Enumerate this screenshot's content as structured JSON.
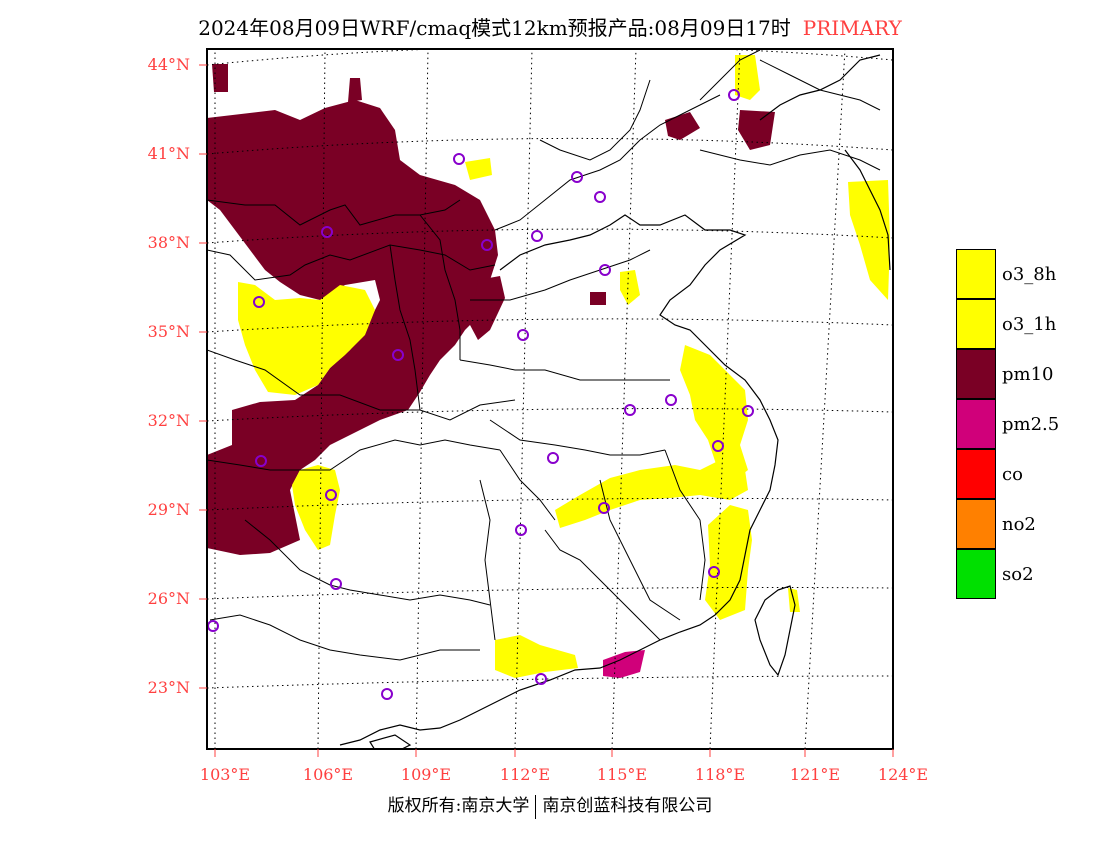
{
  "title": {
    "main": "2024年08月09日WRF/cmaq模式12km预报产品:08月09日17时",
    "type": "PRIMARY"
  },
  "map": {
    "lat_labels": [
      "44°N",
      "41°N",
      "38°N",
      "35°N",
      "32°N",
      "29°N",
      "26°N",
      "23°N"
    ],
    "lon_labels": [
      "103°E",
      "106°E",
      "109°E",
      "112°E",
      "115°E",
      "118°E",
      "121°E",
      "124°E"
    ],
    "extent": {
      "lon_min": 103,
      "lon_max": 124,
      "lat_min": 21,
      "lat_max": 44.5
    }
  },
  "legend": [
    {
      "label": "o3_8h",
      "color": "#ffff00"
    },
    {
      "label": "o3_1h",
      "color": "#ffff00"
    },
    {
      "label": "pm10",
      "color": "#7a0025"
    },
    {
      "label": "pm2.5",
      "color": "#d0007a"
    },
    {
      "label": "co",
      "color": "#ff0000"
    },
    {
      "label": "no2",
      "color": "#ff8000"
    },
    {
      "label": "so2",
      "color": "#00e000"
    }
  ],
  "colors": {
    "outline": "#000000",
    "grid": "#000000",
    "station_marker": "#8800cc",
    "label_red": "#ff4040"
  },
  "footer": {
    "left": "版权所有:南京大学",
    "right": "南京创蓝科技有限公司"
  }
}
